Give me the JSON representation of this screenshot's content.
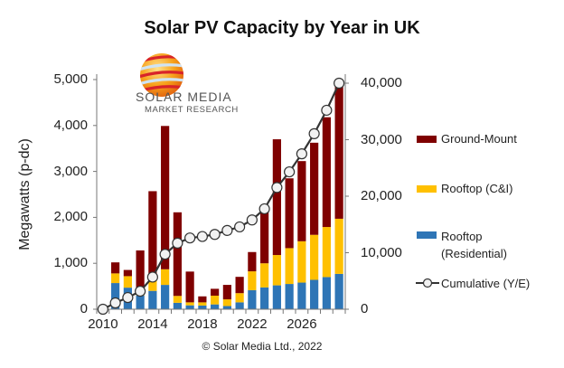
{
  "chart_data": {
    "type": "bar",
    "stacked": true,
    "title": "Solar PV Capacity by Year in UK",
    "ylabel": "Megawatts (p-dc)",
    "y2label": "",
    "xlabel": "",
    "ylim": [
      0,
      5000
    ],
    "y2lim": [
      0,
      40000
    ],
    "yticks": [
      "0",
      "1,000",
      "2,000",
      "3,000",
      "4,000",
      "5,000"
    ],
    "y2ticks": [
      "0",
      "10,000",
      "20,000",
      "30,000",
      "40,000"
    ],
    "xtick_labels": [
      "2010",
      "2014",
      "2018",
      "2022",
      "2026"
    ],
    "grid": false,
    "legend_position": "right",
    "categories": [
      2010,
      2011,
      2012,
      2013,
      2014,
      2015,
      2016,
      2017,
      2018,
      2019,
      2020,
      2021,
      2022,
      2023,
      2024,
      2025,
      2026,
      2027,
      2028,
      2029
    ],
    "series": [
      {
        "name": "Rooftop (Residential)",
        "color": "#2E75B6",
        "axis": "left",
        "values": [
          0,
          570,
          470,
          300,
          400,
          530,
          140,
          85,
          80,
          105,
          70,
          150,
          415,
          475,
          520,
          550,
          580,
          640,
          700,
          770
        ]
      },
      {
        "name": "Rooftop (C&I)",
        "color": "#FFC000",
        "axis": "left",
        "values": [
          0,
          210,
          250,
          80,
          240,
          340,
          150,
          65,
          70,
          190,
          145,
          200,
          410,
          525,
          660,
          780,
          900,
          980,
          1090,
          1200
        ]
      },
      {
        "name": "Ground-Mount",
        "color": "#7F0000",
        "axis": "left",
        "values": [
          0,
          240,
          135,
          900,
          1930,
          3120,
          1820,
          670,
          130,
          150,
          315,
          355,
          420,
          1125,
          2520,
          1520,
          1745,
          2005,
          2390,
          2910
        ]
      },
      {
        "name": "Cumulative (Y/E)",
        "type": "line",
        "color": "#333333",
        "axis": "right",
        "values": [
          0,
          1120,
          2070,
          3190,
          5690,
          9730,
          11700,
          12610,
          12870,
          13240,
          13940,
          14570,
          15800,
          17770,
          21540,
          24310,
          27500,
          31060,
          35210,
          40000
        ]
      }
    ],
    "legend": [
      "Ground-Mount",
      "Rooftop (C&I)",
      "Rooftop (Residential)",
      "Cumulative (Y/E)"
    ],
    "footer": "© Solar Media Ltd., 2022"
  },
  "logo": {
    "line1": "SOLAR MEDIA",
    "line2": "MARKET RESEARCH"
  }
}
